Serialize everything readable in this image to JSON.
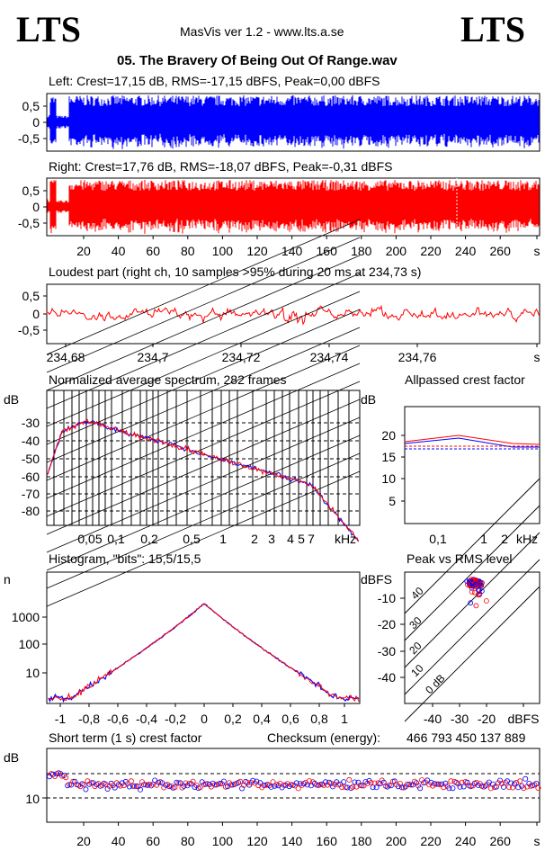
{
  "header": {
    "logo_left": "LTS",
    "logo_right": "LTS",
    "app_title": "MasVis ver 1.2 - www.lts.a.se",
    "file_title": "05. The Bravery Of Being Out Of Range.wav"
  },
  "colors": {
    "left": "#0000ff",
    "right": "#ff0000",
    "grid": "#000000"
  },
  "panels": {
    "left": {
      "caption": "Left: Crest=17,15 dB, RMS=-17,15 dBFS, Peak=0,00 dBFS",
      "yticks": [
        "0,5",
        "0",
        "-0,5"
      ]
    },
    "right": {
      "caption": "Right: Crest=17,76 dB, RMS=-18,07 dBFS, Peak=-0,31 dBFS",
      "yticks": [
        "0,5",
        "0",
        "-0,5"
      ],
      "xticks": [
        "20",
        "40",
        "60",
        "80",
        "100",
        "120",
        "140",
        "160",
        "180",
        "200",
        "220",
        "240",
        "260",
        "s"
      ]
    },
    "loudest": {
      "caption": "Loudest part (right ch, 10 samples >95% during 20 ms at 234,73 s)",
      "yticks": [
        "0,5",
        "0",
        "-0,5"
      ],
      "xticks": [
        "234,68",
        "234,7",
        "234,72",
        "234,74",
        "234,76",
        "s"
      ]
    },
    "spectrum": {
      "caption": "Normalized average spectrum, 282 frames",
      "unit": "dB",
      "yticks": [
        "-30",
        "-40",
        "-50",
        "-60",
        "-70",
        "-80"
      ],
      "xticks": [
        "0,05",
        "0,1",
        "0,2",
        "0,5",
        "1",
        "2",
        "3",
        "4",
        "5",
        "7",
        "kHz"
      ]
    },
    "allpass": {
      "caption": "Allpassed crest factor",
      "unit": "dB",
      "yticks": [
        "20",
        "15",
        "10",
        "5"
      ],
      "xticks": [
        "0,1",
        "1",
        "2",
        "kHz"
      ]
    },
    "histogram": {
      "caption": "Histogram, \"bits\": 15,5/15,5",
      "unit": "n",
      "yticks": [
        "1000",
        "100",
        "10"
      ],
      "xticks": [
        "-1",
        "-0,8",
        "-0,6",
        "-0,4",
        "-0,2",
        "0",
        "0,2",
        "0,4",
        "0,6",
        "0,8",
        "1"
      ]
    },
    "peakrms": {
      "caption": "Peak vs RMS level",
      "unit": "dBFS",
      "yticks": [
        "-10",
        "-20",
        "-30",
        "-40"
      ],
      "xticks": [
        "-40",
        "-30",
        "-20",
        "dBFS"
      ],
      "diag_labels": [
        "40",
        "30",
        "20",
        "10",
        "0 dB"
      ]
    },
    "shortcrest": {
      "caption": "Short term (1 s) crest factor",
      "unit": "dB",
      "ytick": "10",
      "checksum_label": "Checksum (energy):",
      "checksum_value": "466 793 450 137 889",
      "xticks": [
        "20",
        "40",
        "60",
        "80",
        "100",
        "120",
        "140",
        "160",
        "180",
        "200",
        "220",
        "240",
        "260",
        "s"
      ]
    }
  }
}
